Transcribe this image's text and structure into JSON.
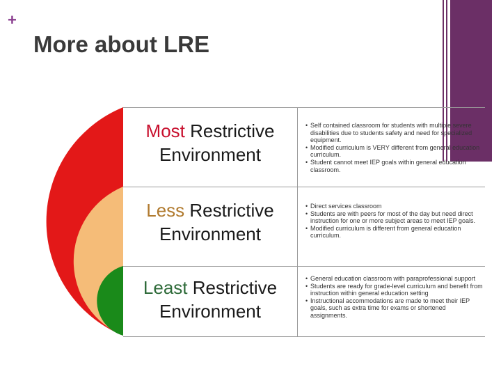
{
  "slide": {
    "plus_glyph": "+",
    "title": "More about LRE"
  },
  "colors": {
    "most": "#e31818",
    "less": "#f5bc78",
    "least": "#1a8a1a",
    "accent": "#6b2f66",
    "most_keyword": "#c8102e",
    "less_keyword": "#b07a2e",
    "least_keyword": "#2f6b3a"
  },
  "levels": [
    {
      "keyword": "Most",
      "rest": " Restrictive",
      "line2": "Environment",
      "bullets": [
        "Self contained classroom for students with multiple severe disabilities due to students safety and need for specialized equipment.",
        "Modified curriculum is VERY different from general education curriculum.",
        "Student cannot meet IEP goals within general education classroom."
      ]
    },
    {
      "keyword": "Less",
      "rest": " Restrictive",
      "line2": "Environment",
      "bullets": [
        "Direct services classroom",
        "Students are with peers for most of the day but need direct instruction for one or more subject areas to meet IEP goals.",
        "Modified curriculum is different from general education curriculum."
      ]
    },
    {
      "keyword": "Least",
      "rest": " Restrictive",
      "line2": "Environment",
      "bullets": [
        "General education classroom with paraprofessional support",
        "Students are ready for grade-level curriculum and benefit from instruction within general education setting",
        "Instructional accommodations are made to meet their IEP goals, such as extra time for exams or shortened assignments."
      ]
    }
  ]
}
